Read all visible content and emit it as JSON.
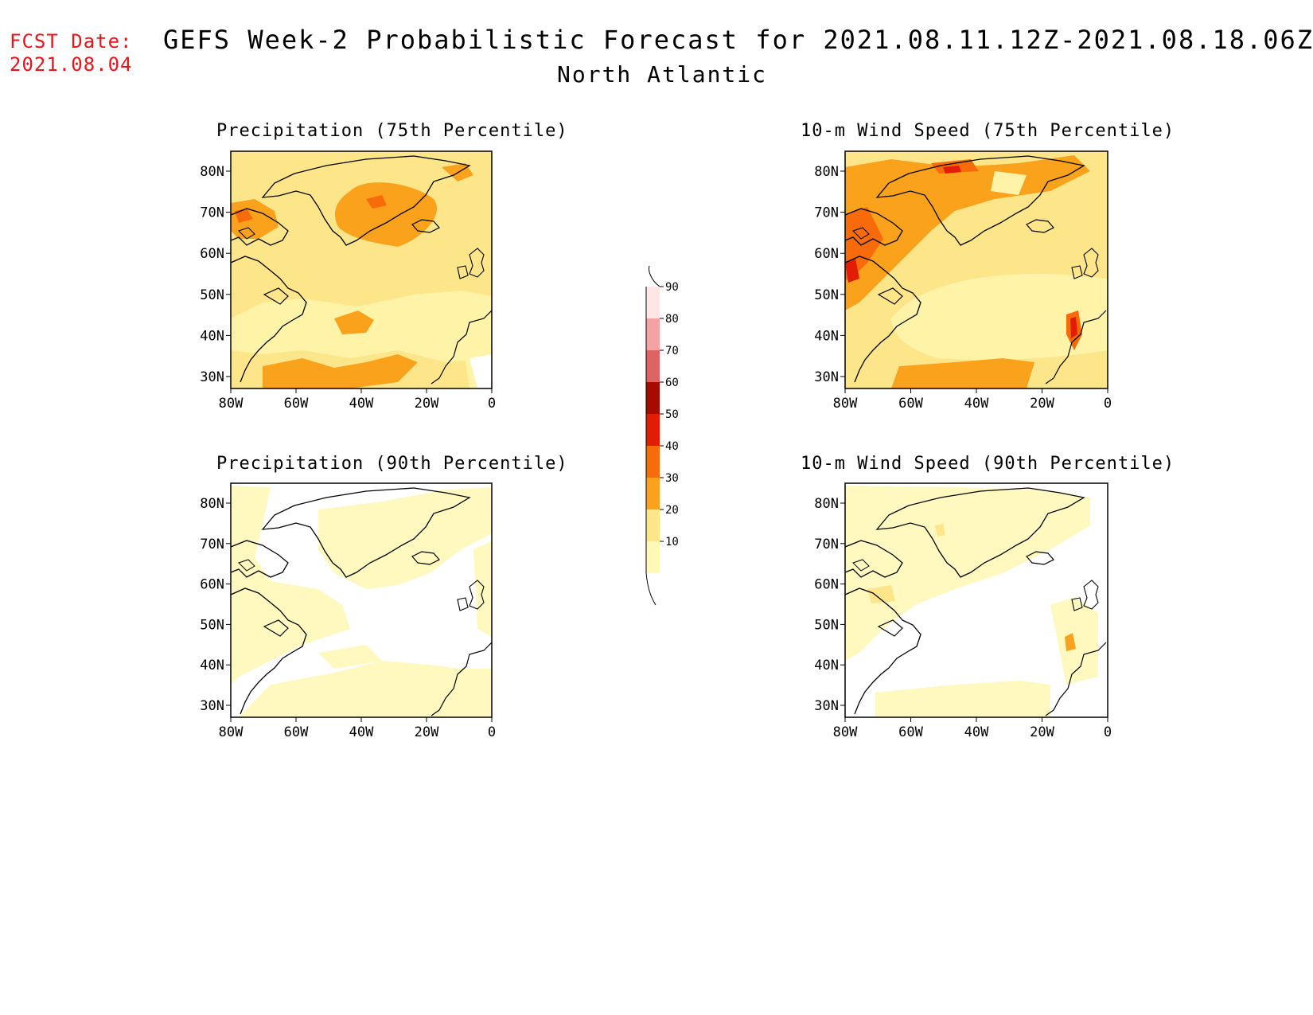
{
  "fcst": {
    "label": "FCST Date:",
    "date": "2021.08.04"
  },
  "title": {
    "line1": "GEFS Week-2 Probabilistic Forecast for 2021.08.11.12Z-2021.08.18.06Z",
    "line2": "North Atlantic"
  },
  "panels": [
    {
      "title": "Precipitation (75th Percentile)"
    },
    {
      "title": "10-m Wind Speed (75th Percentile)"
    },
    {
      "title": "Precipitation (90th Percentile)"
    },
    {
      "title": "10-m Wind Speed (90th Percentile)"
    }
  ],
  "axes": {
    "lat_labels": [
      "80N",
      "70N",
      "60N",
      "50N",
      "40N",
      "30N"
    ],
    "lon_labels": [
      "80W",
      "60W",
      "40W",
      "20W",
      "0"
    ]
  },
  "colorbar": {
    "levels": [
      "10",
      "20",
      "30",
      "40",
      "50",
      "60",
      "70",
      "80",
      "90"
    ],
    "colors": [
      "#fff8b8",
      "#fde68a",
      "#fba21c",
      "#f76b0a",
      "#e21c05",
      "#a80a00",
      "#de6464",
      "#f4a3a3",
      "#ffe6e6"
    ]
  },
  "shading": {
    "bg_light": "#fff9bf",
    "c20": "#fde68a",
    "c30": "#fba21c",
    "c40": "#f76b0a",
    "c50": "#e21c05"
  }
}
